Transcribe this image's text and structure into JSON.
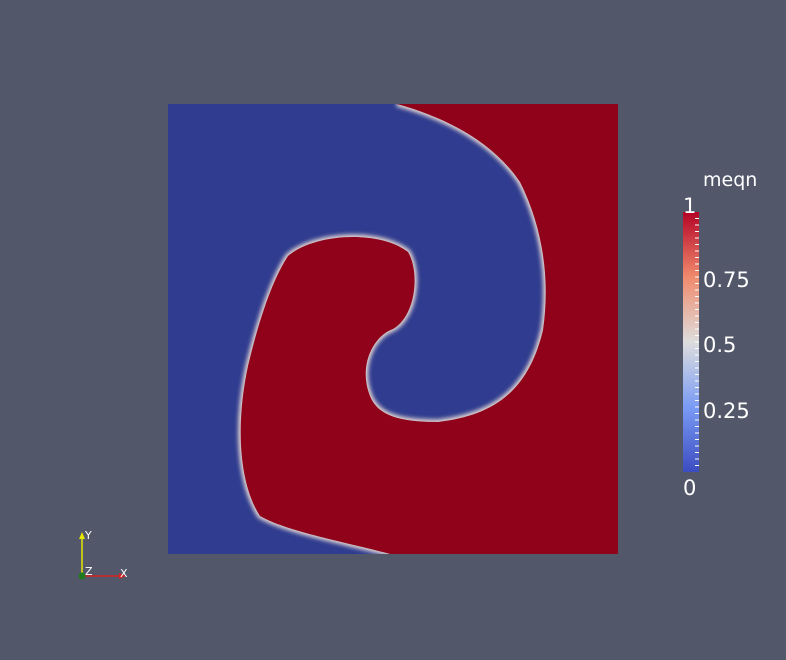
{
  "colorbar": {
    "title": "meqn",
    "ticks": [
      "1",
      "0.75",
      "0.5",
      "0.25",
      "0"
    ],
    "low_color": "#3b4cc0",
    "mid_color": "#dddddd",
    "high_color": "#b40426"
  },
  "field": {
    "background_color": "#2f3c8f",
    "high_value_color": "#8f0219"
  },
  "axes": {
    "x_label": "X",
    "y_label": "Y",
    "z_label": "Z"
  },
  "viewport": {
    "background_color": "#52576a"
  }
}
